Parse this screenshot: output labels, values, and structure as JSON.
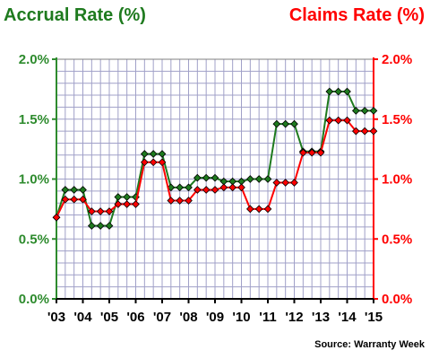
{
  "chart_data": {
    "type": "line",
    "title_left": "Accrual Rate (%)",
    "title_right": "Claims Rate (%)",
    "source": "Source: Warranty Week",
    "ylim": [
      0,
      2
    ],
    "y_ticks": [
      "0.0%",
      "0.5%",
      "1.0%",
      "1.5%",
      "2.0%"
    ],
    "x_tick_labels": [
      "'03",
      "'04",
      "'05",
      "'06",
      "'07",
      "'08",
      "'09",
      "'10",
      "'11",
      "'12",
      "'13",
      "'14",
      "'15"
    ],
    "grid": true,
    "colors": {
      "accrual": "#1e7a1e",
      "claims": "#ff0000",
      "accrual_axis": "#2e8b2e",
      "claims_axis": "#ff0000",
      "grid": "#a0a0c8"
    },
    "series": [
      {
        "key": "accrual",
        "values": [
          0.68,
          0.91,
          0.91,
          0.91,
          0.61,
          0.61,
          0.61,
          0.85,
          0.85,
          0.85,
          1.21,
          1.21,
          1.21,
          0.93,
          0.93,
          0.93,
          1.01,
          1.01,
          1.01,
          0.98,
          0.98,
          0.98,
          1.0,
          1.0,
          1.0,
          1.46,
          1.46,
          1.46,
          1.23,
          1.23,
          1.23,
          1.73,
          1.73,
          1.73,
          1.57,
          1.57,
          1.57
        ]
      },
      {
        "key": "claims",
        "values": [
          0.68,
          0.83,
          0.83,
          0.83,
          0.73,
          0.73,
          0.73,
          0.79,
          0.79,
          0.79,
          1.14,
          1.14,
          1.14,
          0.82,
          0.82,
          0.82,
          0.91,
          0.91,
          0.91,
          0.93,
          0.93,
          0.93,
          0.75,
          0.75,
          0.75,
          0.97,
          0.97,
          0.97,
          1.22,
          1.22,
          1.22,
          1.49,
          1.49,
          1.49,
          1.4,
          1.4,
          1.4
        ]
      }
    ]
  }
}
